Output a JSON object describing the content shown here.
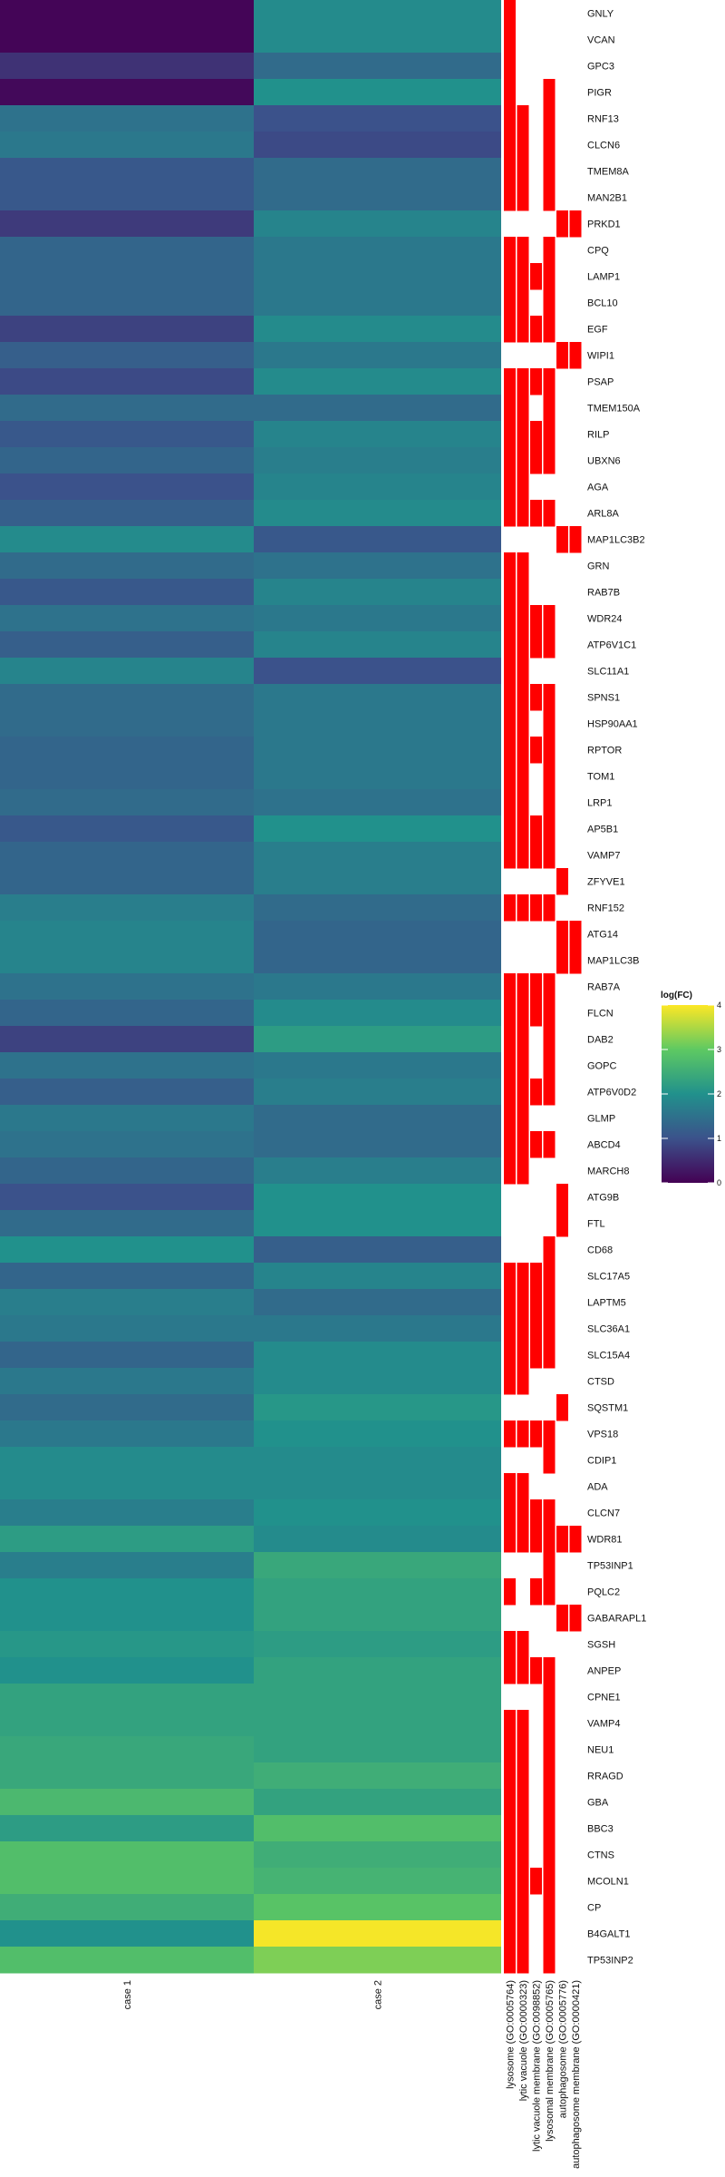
{
  "chart_data": {
    "type": "heatmap",
    "title": "",
    "xlabel": "",
    "ylabel": "",
    "columns": [
      "case 1",
      "case 2"
    ],
    "go_terms": [
      "lysosome (GO:0005764)",
      "lytic vacuole (GO:0000323)",
      "lytic vacuole membrane (GO:0098852)",
      "lysosomal membrane (GO:0005765)",
      "autophagosome (GO:0005776)",
      "autophagosome membrane (GO:0000421)"
    ],
    "legend": {
      "title": "log(FC)",
      "min": 0,
      "max": 4,
      "ticks": [
        "0",
        "1",
        "2",
        "3",
        "4"
      ],
      "placement": "right",
      "colormap": [
        "#440154",
        "#3b528b",
        "#21918c",
        "#5ec962",
        "#fde725"
      ]
    },
    "highlight_color": "#ff0000",
    "genes": [
      "GNLY",
      "VCAN",
      "GPC3",
      "PIGR",
      "RNF13",
      "CLCN6",
      "TMEM8A",
      "MAN2B1",
      "PRKD1",
      "CPQ",
      "LAMP1",
      "BCL10",
      "EGF",
      "WIPI1",
      "PSAP",
      "TMEM150A",
      "RILP",
      "UBXN6",
      "AGA",
      "ARL8A",
      "MAP1LC3B2",
      "GRN",
      "RAB7B",
      "WDR24",
      "ATP6V1C1",
      "SLC11A1",
      "SPNS1",
      "HSP90AA1",
      "RPTOR",
      "TOM1",
      "LRP1",
      "AP5B1",
      "VAMP7",
      "ZFYVE1",
      "RNF152",
      "ATG14",
      "MAP1LC3B",
      "RAB7A",
      "FLCN",
      "DAB2",
      "GOPC",
      "ATP6V0D2",
      "GLMP",
      "ABCD4",
      "MARCH8",
      "ATG9B",
      "FTL",
      "CD68",
      "SLC17A5",
      "LAPTM5",
      "SLC36A1",
      "SLC15A4",
      "CTSD",
      "SQSTM1",
      "VPS18",
      "CDIP1",
      "ADA",
      "CLCN7",
      "WDR81",
      "TP53INP1",
      "PQLC2",
      "GABARAPL1",
      "SGSH",
      "ANPEP",
      "CPNE1",
      "VAMP4",
      "NEU1",
      "RRAGD",
      "GBA",
      "BBC3",
      "CTNS",
      "MCOLN1",
      "CP",
      "B4GALT1",
      "TP53INP2"
    ],
    "values": [
      [
        0.05,
        1.9
      ],
      [
        0.05,
        1.9
      ],
      [
        0.6,
        1.4
      ],
      [
        0.1,
        2.0
      ],
      [
        1.5,
        1.0
      ],
      [
        1.6,
        0.9
      ],
      [
        1.1,
        1.4
      ],
      [
        1.1,
        1.4
      ],
      [
        0.7,
        1.8
      ],
      [
        1.3,
        1.6
      ],
      [
        1.3,
        1.6
      ],
      [
        1.3,
        1.6
      ],
      [
        0.8,
        1.9
      ],
      [
        1.2,
        1.6
      ],
      [
        0.9,
        1.9
      ],
      [
        1.4,
        1.4
      ],
      [
        1.1,
        1.8
      ],
      [
        1.3,
        1.7
      ],
      [
        1.0,
        1.8
      ],
      [
        1.2,
        1.9
      ],
      [
        1.9,
        1.1
      ],
      [
        1.4,
        1.5
      ],
      [
        1.1,
        1.8
      ],
      [
        1.5,
        1.6
      ],
      [
        1.2,
        1.8
      ],
      [
        1.8,
        1.0
      ],
      [
        1.4,
        1.6
      ],
      [
        1.4,
        1.6
      ],
      [
        1.3,
        1.6
      ],
      [
        1.3,
        1.6
      ],
      [
        1.4,
        1.5
      ],
      [
        1.1,
        2.0
      ],
      [
        1.3,
        1.7
      ],
      [
        1.3,
        1.7
      ],
      [
        1.7,
        1.4
      ],
      [
        1.8,
        1.3
      ],
      [
        1.8,
        1.3
      ],
      [
        1.5,
        1.6
      ],
      [
        1.3,
        1.9
      ],
      [
        0.8,
        2.2
      ],
      [
        1.5,
        1.6
      ],
      [
        1.2,
        1.7
      ],
      [
        1.6,
        1.4
      ],
      [
        1.5,
        1.4
      ],
      [
        1.3,
        1.7
      ],
      [
        1.0,
        2.0
      ],
      [
        1.4,
        2.0
      ],
      [
        2.0,
        1.2
      ],
      [
        1.3,
        1.8
      ],
      [
        1.7,
        1.4
      ],
      [
        1.6,
        1.6
      ],
      [
        1.3,
        1.9
      ],
      [
        1.6,
        1.9
      ],
      [
        1.4,
        2.1
      ],
      [
        1.6,
        2.0
      ],
      [
        1.9,
        1.9
      ],
      [
        1.9,
        1.9
      ],
      [
        1.7,
        2.0
      ],
      [
        2.2,
        1.9
      ],
      [
        1.7,
        2.4
      ],
      [
        2.0,
        2.3
      ],
      [
        2.0,
        2.3
      ],
      [
        2.1,
        2.2
      ],
      [
        2.0,
        2.3
      ],
      [
        2.3,
        2.3
      ],
      [
        2.3,
        2.3
      ],
      [
        2.4,
        2.3
      ],
      [
        2.4,
        2.5
      ],
      [
        2.7,
        2.3
      ],
      [
        2.2,
        2.8
      ],
      [
        2.8,
        2.5
      ],
      [
        2.8,
        2.6
      ],
      [
        2.5,
        2.9
      ],
      [
        2.0,
        3.95
      ],
      [
        2.8,
        3.2
      ]
    ],
    "memberships": [
      [
        0,
        0
      ],
      [
        0,
        0
      ],
      [
        0,
        0
      ],
      [
        0,
        3
      ],
      [
        0,
        1,
        3
      ],
      [
        0,
        1,
        3
      ],
      [
        0,
        1,
        3
      ],
      [
        0,
        1,
        3
      ],
      [
        4,
        5
      ],
      [
        0,
        1,
        3
      ],
      [
        0,
        1,
        2,
        3
      ],
      [
        0,
        1,
        3
      ],
      [
        0,
        1,
        2,
        3
      ],
      [
        4,
        5
      ],
      [
        0,
        1,
        2,
        3
      ],
      [
        0,
        1,
        3
      ],
      [
        0,
        1,
        2,
        3
      ],
      [
        0,
        1,
        2,
        3
      ],
      [
        0,
        1
      ],
      [
        0,
        1,
        2,
        3
      ],
      [
        4,
        5
      ],
      [
        0,
        1
      ],
      [
        0,
        1
      ],
      [
        0,
        1,
        2,
        3
      ],
      [
        0,
        1,
        2,
        3
      ],
      [
        0,
        1
      ],
      [
        0,
        1,
        2,
        3
      ],
      [
        0,
        1,
        3
      ],
      [
        0,
        1,
        2,
        3
      ],
      [
        0,
        1,
        3
      ],
      [
        0,
        1,
        3
      ],
      [
        0,
        1,
        2,
        3
      ],
      [
        0,
        1,
        2,
        3
      ],
      [
        4
      ],
      [
        0,
        1,
        2,
        3
      ],
      [
        4,
        5
      ],
      [
        4,
        5
      ],
      [
        0,
        1,
        2,
        3
      ],
      [
        0,
        1,
        2,
        3
      ],
      [
        0,
        1,
        3
      ],
      [
        0,
        1,
        3
      ],
      [
        0,
        1,
        2,
        3
      ],
      [
        0,
        1
      ],
      [
        0,
        1,
        2,
        3
      ],
      [
        0,
        1
      ],
      [
        4
      ],
      [
        4
      ],
      [
        3
      ],
      [
        0,
        1,
        2,
        3
      ],
      [
        0,
        1,
        2,
        3
      ],
      [
        0,
        1,
        2,
        3
      ],
      [
        0,
        1,
        2,
        3
      ],
      [
        0,
        1
      ],
      [
        4
      ],
      [
        0,
        1,
        2,
        3
      ],
      [
        3
      ],
      [
        0,
        1
      ],
      [
        0,
        1,
        2,
        3
      ],
      [
        0,
        1,
        2,
        3,
        4,
        5
      ],
      [
        3
      ],
      [
        0,
        2,
        3
      ],
      [
        4,
        5
      ],
      [
        0,
        1
      ],
      [
        0,
        1,
        2,
        3
      ],
      [
        3
      ],
      [
        0,
        1,
        3
      ],
      [
        0,
        1,
        3
      ],
      [
        0,
        1,
        3
      ],
      [
        0,
        1,
        3
      ],
      [
        0,
        1,
        3
      ],
      [
        0,
        1,
        3
      ],
      [
        0,
        1,
        2,
        3
      ],
      [
        0,
        1,
        3
      ],
      [
        0,
        1,
        3
      ],
      [
        0,
        1,
        3
      ]
    ]
  }
}
